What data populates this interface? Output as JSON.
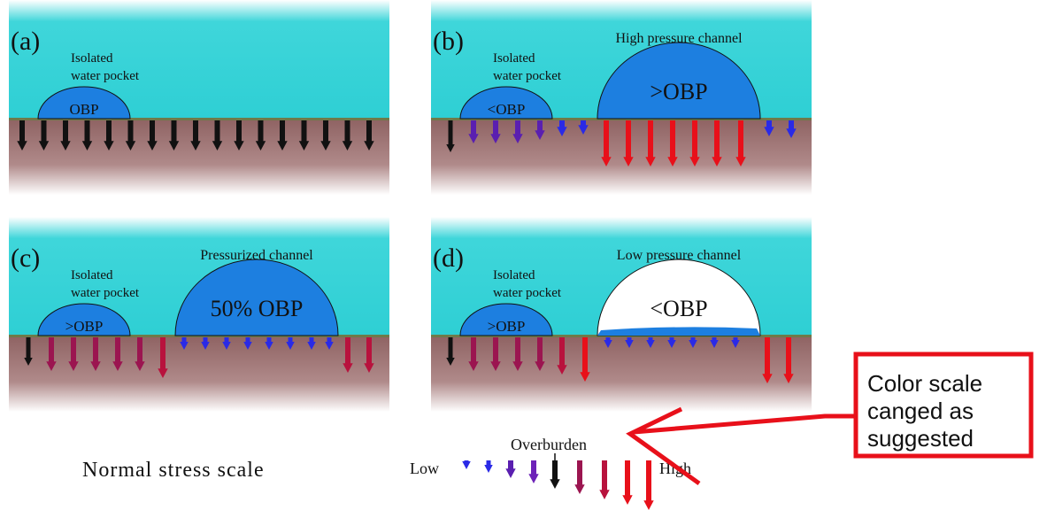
{
  "panels": [
    {
      "label": "(a)",
      "pocket_label": [
        "Isolated",
        "water pocket"
      ],
      "pocket_pressure": "OBP"
    },
    {
      "label": "(b)",
      "pocket_label": [
        "Isolated",
        "water pocket"
      ],
      "pocket_pressure": "<OBP",
      "channel_title": "High pressure channel",
      "channel_pressure": ">OBP"
    },
    {
      "label": "(c)",
      "pocket_label": [
        "Isolated",
        "water pocket"
      ],
      "pocket_pressure": ">OBP",
      "channel_title": "Pressurized channel",
      "channel_pressure": "50% OBP"
    },
    {
      "label": "(d)",
      "pocket_label": [
        "Isolated",
        "water pocket"
      ],
      "pocket_pressure": ">OBP",
      "channel_title": "Low pressure channel",
      "channel_pressure": "<OBP"
    }
  ],
  "scale": {
    "title": "Normal stress scale",
    "low": "Low",
    "overburden": "Overburden",
    "high": "High"
  },
  "annotation": [
    "Color scale",
    "canged as",
    "suggested"
  ]
}
